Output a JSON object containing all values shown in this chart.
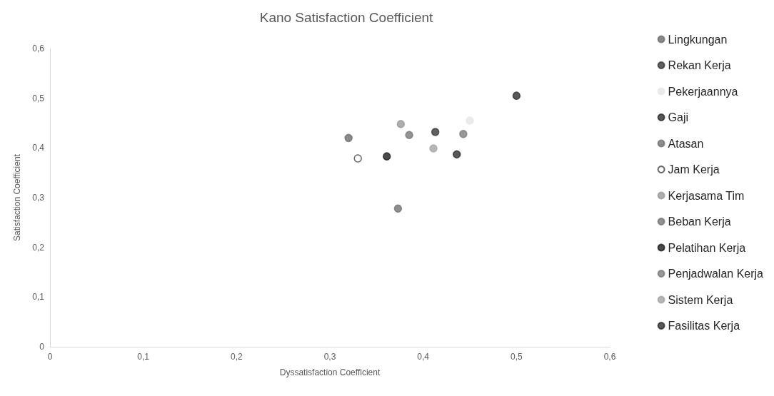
{
  "chart_data": {
    "type": "scatter",
    "title": "Kano Satisfaction Coefficient",
    "xlabel": "Dyssatisfaction Coefficient",
    "ylabel": "Satisfaction Coefficient",
    "xlim": [
      0,
      0.6
    ],
    "xticks": [
      0,
      {
        "value": 0.1,
        "label": "0,1"
      },
      {
        "value": 0.2,
        "label": "0,2"
      },
      {
        "value": 0.3,
        "label": "0,3"
      },
      {
        "value": 0.4,
        "label": "0,4"
      },
      {
        "value": 0.5,
        "label": "0,5"
      },
      {
        "value": 0.6,
        "label": "0,6"
      }
    ],
    "ylim": [
      0,
      0.6
    ],
    "yticks": [
      0,
      {
        "value": 0.1,
        "label": "0,1"
      },
      {
        "value": 0.2,
        "label": "0,2"
      },
      {
        "value": 0.3,
        "label": "0,3"
      },
      {
        "value": 0.4,
        "label": "0,4"
      },
      {
        "value": 0.5,
        "label": "0,5"
      },
      {
        "value": 0.6,
        "label": "0,6"
      }
    ],
    "grid": false,
    "legend": "right",
    "marker": "circle",
    "series": [
      {
        "name": "Lingkungan",
        "color": "#6e6e6e",
        "x": [
          0.32
        ],
        "values": [
          0.42
        ]
      },
      {
        "name": "Rekan Kerja",
        "color": "#3a3a3a",
        "x": [
          0.413
        ],
        "values": [
          0.432
        ]
      },
      {
        "name": "Pekerjaannya",
        "color": "#e6e6e6",
        "x": [
          0.45
        ],
        "values": [
          0.455
        ]
      },
      {
        "name": "Gaji",
        "color": "#2e2e2e",
        "x": [
          0.436
        ],
        "values": [
          0.387
        ]
      },
      {
        "name": "Atasan",
        "color": "#737373",
        "x": [
          0.373
        ],
        "values": [
          0.278
        ]
      },
      {
        "name": "Jam Kerja",
        "color": "#ffffff",
        "x": [
          0.33
        ],
        "values": [
          0.379
        ]
      },
      {
        "name": "Kerjasama Tim",
        "color": "#9a9a9a",
        "x": [
          0.376
        ],
        "values": [
          0.448
        ]
      },
      {
        "name": "Beban Kerja",
        "color": "#777777",
        "x": [
          0.385
        ],
        "values": [
          0.426
        ]
      },
      {
        "name": "Pelatihan Kerja",
        "color": "#1e1e1e",
        "x": [
          0.361
        ],
        "values": [
          0.383
        ]
      },
      {
        "name": "Penjadwalan Kerja",
        "color": "#7d7d7d",
        "x": [
          0.443
        ],
        "values": [
          0.428
        ]
      },
      {
        "name": "Sistem Kerja",
        "color": "#a5a5a5",
        "x": [
          0.411
        ],
        "values": [
          0.399
        ]
      },
      {
        "name": "Fasilitas Kerja",
        "color": "#303030",
        "x": [
          0.5
        ],
        "values": [
          0.505
        ]
      }
    ]
  }
}
